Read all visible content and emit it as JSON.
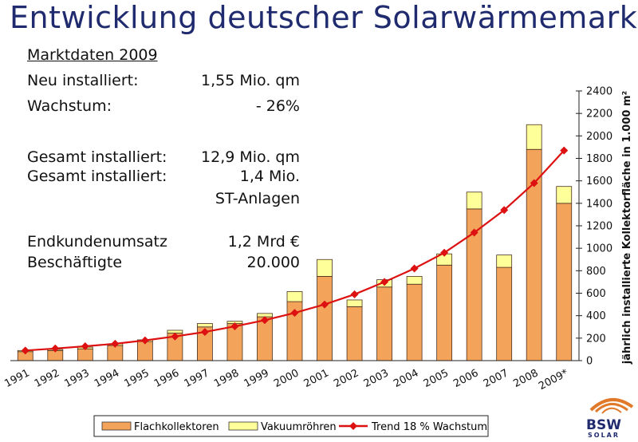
{
  "title": "Entwicklung deutscher Solarwärmemarkt",
  "info": {
    "heading": "Marktdaten 2009",
    "rows": [
      {
        "label": "Neu installiert:",
        "value": "1,55 Mio. qm"
      },
      {
        "label": "Wachstum:",
        "value": "- 26%"
      },
      {
        "label": "Gesamt installiert:",
        "value": "12,9 Mio. qm"
      },
      {
        "label": "Gesamt installiert:",
        "value": "1,4 Mio."
      },
      {
        "label": "",
        "value": "ST-Anlagen"
      },
      {
        "label": "Endkundenumsatz",
        "value": "1,2 Mrd €"
      },
      {
        "label": "Beschäftigte",
        "value": "20.000"
      }
    ]
  },
  "chart_data": {
    "type": "bar",
    "stacked": true,
    "categories": [
      "1991",
      "1992",
      "1993",
      "1994",
      "1995",
      "1996",
      "1997",
      "1998",
      "1999",
      "2000",
      "2001",
      "2002",
      "2003",
      "2004",
      "2005",
      "2006",
      "2007",
      "2008",
      "2009*"
    ],
    "series": [
      {
        "name": "Flachkollektoren",
        "color": "#f4a45a",
        "values": [
          80,
          90,
          105,
          135,
          170,
          245,
          300,
          330,
          390,
          525,
          750,
          480,
          655,
          680,
          850,
          1350,
          830,
          1880,
          1400
        ]
      },
      {
        "name": "Vakuumröhren",
        "color": "#ffff99",
        "values": [
          10,
          10,
          15,
          15,
          15,
          25,
          30,
          20,
          30,
          90,
          150,
          60,
          65,
          70,
          100,
          150,
          110,
          220,
          150
        ]
      }
    ],
    "line": {
      "name": "Trend 18 % Wachstum",
      "color": "#dd1111",
      "values": [
        90,
        108,
        128,
        150,
        180,
        215,
        255,
        305,
        360,
        425,
        500,
        590,
        700,
        820,
        960,
        1140,
        1340,
        1580,
        1870
      ]
    },
    "ylabel": "jährlich installierte Kollektorfläche in 1.000 m²",
    "ylim": [
      0,
      2400
    ],
    "yticks": [
      "0",
      "200",
      "400",
      "600",
      "800",
      "1000",
      "1200",
      "1400",
      "1600",
      "1800",
      "2000",
      "2200",
      "2400"
    ],
    "legend_position": "bottom"
  },
  "logo": {
    "text_top": "BSW",
    "text_bottom": "SOLAR"
  }
}
